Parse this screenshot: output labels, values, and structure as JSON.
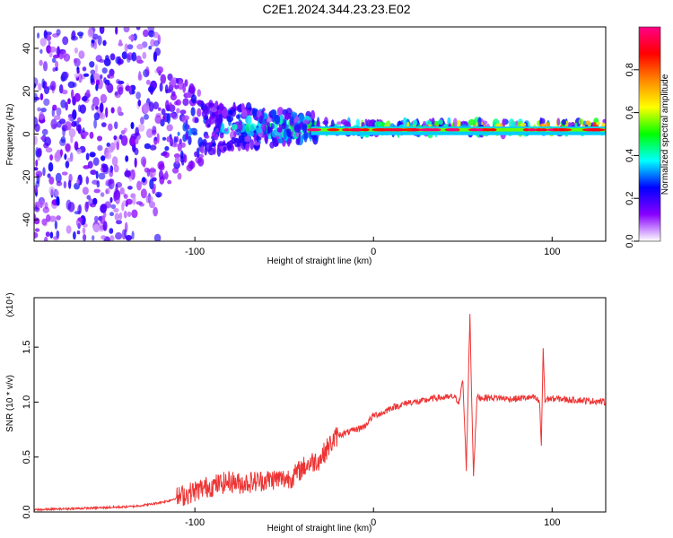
{
  "title": "C2E1.2024.344.23.23.E02",
  "chart_data": [
    {
      "type": "heatmap",
      "title": "C2E1.2024.344.23.23.E02",
      "xlabel": "Height of straight line (km)",
      "ylabel": "Frequency (Hz)",
      "xlim": [
        -190,
        130
      ],
      "ylim": [
        -50,
        50
      ],
      "x_ticks": [
        -100,
        0,
        100
      ],
      "y_ticks": [
        -40,
        -20,
        0,
        20,
        40
      ],
      "colorbar": {
        "label": "Normalized spectral amplitude",
        "range": [
          0.0,
          1.0
        ],
        "ticks": [
          0.0,
          0.2,
          0.4,
          0.6,
          0.8
        ],
        "tick_labels": [
          "0.0",
          "0.2",
          "0.4",
          "0.6",
          "0.8"
        ],
        "colormap": [
          "#ffffff",
          "#8800ff",
          "#0000ff",
          "#00ffff",
          "#00ff00",
          "#ffff00",
          "#ff8800",
          "#ff0000",
          "#ff0088"
        ]
      }
    },
    {
      "type": "line",
      "xlabel": "Height of straight line (km)",
      "ylabel": "SNR (10 * v/v)",
      "y_multiplier": "(x10⁴)",
      "xlim": [
        -190,
        130
      ],
      "ylim": [
        0.0,
        1.95
      ],
      "x_ticks": [
        -100,
        0,
        100
      ],
      "y_ticks": [
        0.0,
        0.5,
        1.0,
        1.5
      ],
      "y_tick_labels": [
        "0.0",
        "0.5",
        "1.0",
        "1.5"
      ],
      "color": "#ee3333",
      "x": [
        -190,
        -170,
        -150,
        -135,
        -125,
        -115,
        -105,
        -95,
        -90,
        -85,
        -80,
        -75,
        -70,
        -65,
        -60,
        -55,
        -50,
        -45,
        -40,
        -35,
        -30,
        -25,
        -20,
        -15,
        -10,
        -5,
        0,
        5,
        10,
        15,
        20,
        25,
        30,
        35,
        40,
        45,
        48,
        50,
        52,
        54,
        55,
        56,
        58,
        60,
        65,
        70,
        75,
        80,
        85,
        90,
        93,
        94,
        95,
        96,
        97,
        100,
        105,
        110,
        115,
        120,
        125,
        130
      ],
      "y": [
        0.02,
        0.03,
        0.04,
        0.05,
        0.07,
        0.1,
        0.16,
        0.22,
        0.24,
        0.26,
        0.28,
        0.26,
        0.27,
        0.28,
        0.29,
        0.3,
        0.3,
        0.32,
        0.4,
        0.45,
        0.48,
        0.6,
        0.7,
        0.72,
        0.75,
        0.78,
        0.88,
        0.9,
        0.95,
        0.97,
        1.0,
        1.0,
        1.02,
        1.04,
        1.04,
        1.05,
        1.0,
        1.2,
        0.4,
        1.8,
        1.0,
        0.35,
        1.05,
        1.04,
        1.04,
        1.04,
        1.03,
        1.03,
        1.04,
        1.04,
        1.0,
        0.6,
        1.5,
        1.0,
        1.03,
        1.03,
        1.03,
        1.02,
        1.02,
        1.01,
        1.01,
        1.0
      ]
    }
  ]
}
